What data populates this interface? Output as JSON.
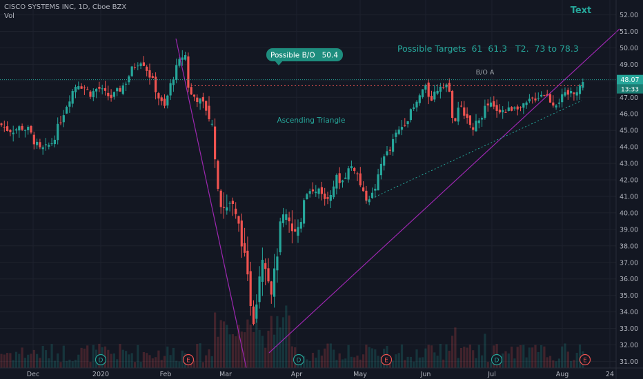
{
  "legend": {
    "symbol_line": "CISCO SYSTEMS INC, 1D, Cboe BZX",
    "volume_label": "Vol"
  },
  "price_badge": {
    "value": "48.07",
    "countdown": "13:33"
  },
  "chart_data": {
    "type": "candlestick",
    "ylim": [
      30.6,
      52.4
    ],
    "y_ticks": [
      31,
      32,
      33,
      34,
      35,
      36,
      37,
      38,
      39,
      40,
      41,
      42,
      43,
      44,
      45,
      46,
      47,
      48,
      49,
      50,
      51,
      52
    ],
    "y_tick_labels": [
      "31.00",
      "32.00",
      "33.00",
      "34.00",
      "35.00",
      "36.00",
      "37.00",
      "38.00",
      "39.00",
      "40.00",
      "41.00",
      "42.00",
      "43.00",
      "44.00",
      "45.00",
      "46.00",
      "47.00",
      "48.00",
      "49.00",
      "50.00",
      "51.00",
      "52.00"
    ],
    "x_tick_labels": [
      "Dec",
      "2020",
      "Feb",
      "Mar",
      "Apr",
      "May",
      "Jun",
      "Jul",
      "Aug",
      "24"
    ],
    "last_price": 48.07,
    "annotations": {
      "text_label": "Text",
      "targets": "Possible Targets  61  61.3   T2.  73 to 78.3",
      "callout": "Possible B/O   50.4",
      "breakout_label": "B/O A",
      "pattern_label": "Ascending Triangle",
      "breakout_level": 47.7
    },
    "events": [
      "D",
      "E",
      "D",
      "E",
      "D",
      "E"
    ],
    "colors": {
      "up": "#26a69a",
      "down": "#ef5350",
      "trendline": "#9c27b0",
      "background": "#131722"
    }
  }
}
